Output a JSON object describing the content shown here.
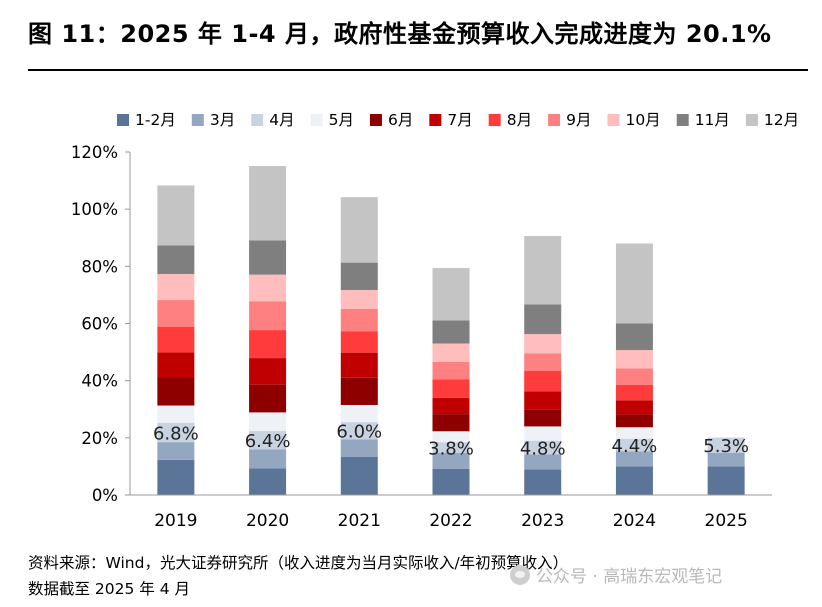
{
  "title": "图 11：2025 年 1-4 月，政府性基金预算收入完成进度为 20.1%",
  "source_line1": "资料来源：Wind，光大证券研究所（收入进度为当月实际收入/年初预算收入）",
  "source_line2": "数据截至 2025 年 4 月",
  "watermark": "公众号 · 高瑞东宏观笔记",
  "chart_data": {
    "type": "bar",
    "stacked": true,
    "categories": [
      "2019",
      "2020",
      "2021",
      "2022",
      "2023",
      "2024",
      "2025"
    ],
    "ylim": [
      0,
      120
    ],
    "yticks": [
      0,
      20,
      40,
      60,
      80,
      100,
      120
    ],
    "ytick_labels": [
      "0%",
      "20%",
      "40%",
      "60%",
      "80%",
      "100%",
      "120%"
    ],
    "grid": false,
    "legend_position": "top",
    "series": [
      {
        "name": "1-2月",
        "color": "#5b7598",
        "values": [
          12.3,
          9.3,
          13.4,
          9.2,
          8.9,
          10.0,
          10.0
        ]
      },
      {
        "name": "3月",
        "color": "#93a7c1",
        "values": [
          6.2,
          6.7,
          6.1,
          5.5,
          5.3,
          5.3,
          4.8
        ]
      },
      {
        "name": "4月",
        "color": "#c8d3e1",
        "values": [
          6.8,
          6.4,
          6.0,
          3.8,
          4.8,
          4.4,
          5.3
        ]
      },
      {
        "name": "5月",
        "color": "#eef1f6",
        "values": [
          6.0,
          6.5,
          6.0,
          3.8,
          5.0,
          4.0,
          null
        ]
      },
      {
        "name": "6月",
        "color": "#8e0000",
        "values": [
          9.8,
          9.7,
          9.5,
          6.0,
          6.0,
          4.5,
          null
        ]
      },
      {
        "name": "7月",
        "color": "#c00000",
        "values": [
          8.8,
          9.3,
          8.8,
          5.7,
          6.3,
          4.9,
          null
        ]
      },
      {
        "name": "8月",
        "color": "#ff3b3b",
        "values": [
          9.0,
          9.8,
          7.4,
          6.4,
          7.2,
          5.5,
          null
        ]
      },
      {
        "name": "9月",
        "color": "#ff8080",
        "values": [
          9.3,
          10.1,
          7.9,
          6.2,
          6.0,
          5.7,
          null
        ]
      },
      {
        "name": "10月",
        "color": "#ffbdbd",
        "values": [
          9.1,
          9.3,
          6.6,
          6.4,
          6.8,
          6.4,
          null
        ]
      },
      {
        "name": "11月",
        "color": "#7f7f7f",
        "values": [
          10.0,
          12.0,
          9.6,
          8.1,
          10.4,
          9.3,
          null
        ]
      },
      {
        "name": "12月",
        "color": "#c4c4c4",
        "values": [
          21.0,
          26.0,
          22.9,
          18.3,
          23.9,
          28.0,
          null
        ]
      }
    ],
    "data_labels": {
      "series": "4月",
      "values": [
        "6.8%",
        "6.4%",
        "6.0%",
        "3.8%",
        "4.8%",
        "4.4%",
        "5.3%"
      ]
    }
  }
}
